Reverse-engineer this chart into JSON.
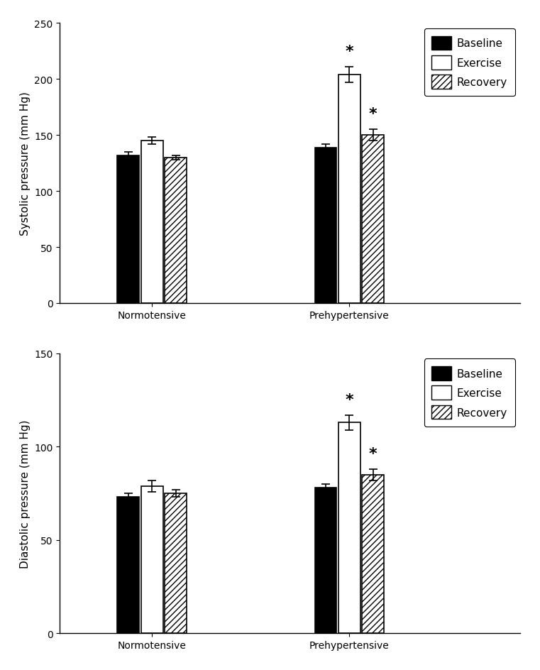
{
  "top_chart": {
    "ylabel": "Systolic pressure (mm Hg)",
    "ylim": [
      0,
      250
    ],
    "yticks": [
      0,
      50,
      100,
      150,
      200,
      250
    ],
    "groups": [
      "Normotensive",
      "Prehypertensive"
    ],
    "conditions": [
      "Baseline",
      "Exercise",
      "Recovery"
    ],
    "values": [
      [
        132,
        145,
        130
      ],
      [
        139,
        204,
        150
      ]
    ],
    "errors": [
      [
        3,
        3,
        2
      ],
      [
        3,
        7,
        5
      ]
    ],
    "significance": [
      [
        false,
        false,
        false
      ],
      [
        false,
        true,
        true
      ]
    ]
  },
  "bottom_chart": {
    "ylabel": "Diastolic pressure (mm Hg)",
    "ylim": [
      0,
      150
    ],
    "yticks": [
      0,
      50,
      100,
      150
    ],
    "groups": [
      "Normotensive",
      "Prehypertensive"
    ],
    "conditions": [
      "Baseline",
      "Exercise",
      "Recovery"
    ],
    "values": [
      [
        73,
        79,
        75
      ],
      [
        78,
        113,
        85
      ]
    ],
    "errors": [
      [
        2,
        3,
        2
      ],
      [
        2,
        4,
        3
      ]
    ],
    "significance": [
      [
        false,
        false,
        false
      ],
      [
        false,
        true,
        true
      ]
    ]
  },
  "bar_colors": [
    "#000000",
    "#ffffff",
    "hatch"
  ],
  "bar_edgecolor": "#000000",
  "hatch_pattern": "////",
  "legend_labels": [
    "Baseline",
    "Exercise",
    "Recovery"
  ],
  "bar_width": 0.18,
  "group_centers": [
    1.0,
    2.5
  ],
  "xlim": [
    0.3,
    3.8
  ],
  "background_color": "#ffffff",
  "figure_background": "#ffffff"
}
